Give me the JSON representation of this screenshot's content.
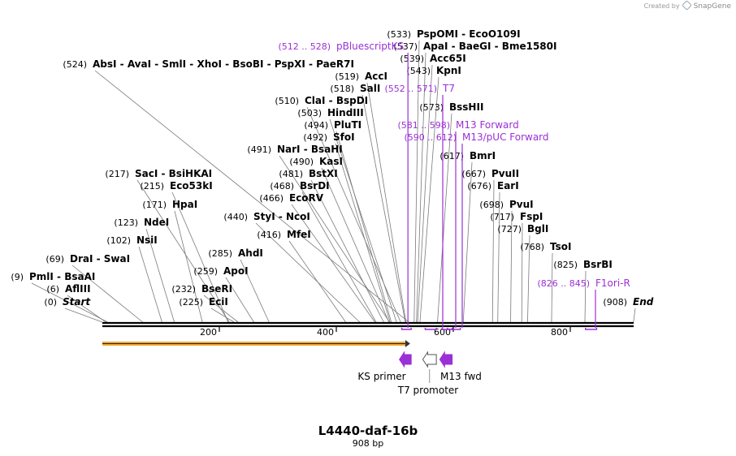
{
  "credit": {
    "prefix": "Created by",
    "brand": "SnapGene"
  },
  "title": "L4440-daf-16b",
  "subtitle": "908 bp",
  "total_bp": 908,
  "colors": {
    "feature_purple": "#9b30d6",
    "site_text": "#000000",
    "leader_line": "#7a7a7a",
    "backbone": "#000000",
    "orange_bar": "#f0a830",
    "arrow_fill": "#9b30d6"
  },
  "axis_ticks": [
    {
      "pos": 200,
      "label": "200"
    },
    {
      "pos": 400,
      "label": "400"
    },
    {
      "pos": 600,
      "label": "600"
    },
    {
      "pos": 800,
      "label": "800"
    }
  ],
  "sites": [
    {
      "pos_label": "(0)",
      "name": "Start",
      "pos": 0,
      "italic": true
    },
    {
      "pos_label": "(6)",
      "name": "AflIII",
      "pos": 6
    },
    {
      "pos_label": "(9)",
      "name": "PmlI  -  BsaAI",
      "pos": 9
    },
    {
      "pos_label": "(69)",
      "name": "DraI  -  SwaI",
      "pos": 69
    },
    {
      "pos_label": "(102)",
      "name": "NsiI",
      "pos": 102
    },
    {
      "pos_label": "(123)",
      "name": "NdeI",
      "pos": 123
    },
    {
      "pos_label": "(171)",
      "name": "HpaI",
      "pos": 171
    },
    {
      "pos_label": "(215)",
      "name": "Eco53kI",
      "pos": 215
    },
    {
      "pos_label": "(217)",
      "name": "SacI  -  BsiHKAI",
      "pos": 217
    },
    {
      "pos_label": "(225)",
      "name": "EciI",
      "pos": 225
    },
    {
      "pos_label": "(232)",
      "name": "BseRI",
      "pos": 232
    },
    {
      "pos_label": "(259)",
      "name": "ApoI",
      "pos": 259
    },
    {
      "pos_label": "(285)",
      "name": "AhdI",
      "pos": 285
    },
    {
      "pos_label": "(416)",
      "name": "MfeI",
      "pos": 416
    },
    {
      "pos_label": "(440)",
      "name": "StyI  -  NcoI",
      "pos": 440
    },
    {
      "pos_label": "(466)",
      "name": "EcoRV",
      "pos": 466
    },
    {
      "pos_label": "(468)",
      "name": "BsrDI",
      "pos": 468
    },
    {
      "pos_label": "(481)",
      "name": "BstXI",
      "pos": 481
    },
    {
      "pos_label": "(490)",
      "name": "KasI",
      "pos": 490
    },
    {
      "pos_label": "(491)",
      "name": "NarI  -  BsaHI",
      "pos": 491
    },
    {
      "pos_label": "(492)",
      "name": "SfoI",
      "pos": 492
    },
    {
      "pos_label": "(494)",
      "name": "PluTI",
      "pos": 494
    },
    {
      "pos_label": "(503)",
      "name": "HindIII",
      "pos": 503
    },
    {
      "pos_label": "(510)",
      "name": "ClaI  -  BspDI",
      "pos": 510
    },
    {
      "pos_label": "(518)",
      "name": "SalI",
      "pos": 518
    },
    {
      "pos_label": "(519)",
      "name": "AccI",
      "pos": 519
    },
    {
      "pos_label": "(524)",
      "name": "AbsI  -  AvaI  -  SmlI  -  XhoI  -  BsoBI  -  PspXI  -  PaeR7I",
      "pos": 524
    },
    {
      "pos_label": "(533)",
      "name": "PspOMI  -  EcoO109I",
      "pos": 533
    },
    {
      "pos_label": "(537)",
      "name": "ApaI  -  BaeGI  -  Bme1580I",
      "pos": 537
    },
    {
      "pos_label": "(539)",
      "name": "Acc65I",
      "pos": 539
    },
    {
      "pos_label": "(543)",
      "name": "KpnI",
      "pos": 543
    },
    {
      "pos_label": "(573)",
      "name": "BssHII",
      "pos": 573
    },
    {
      "pos_label": "(617)",
      "name": "BmrI",
      "pos": 617
    },
    {
      "pos_label": "(667)",
      "name": "PvuII",
      "pos": 667
    },
    {
      "pos_label": "(676)",
      "name": "EarI",
      "pos": 676
    },
    {
      "pos_label": "(698)",
      "name": "PvuI",
      "pos": 698
    },
    {
      "pos_label": "(717)",
      "name": "FspI",
      "pos": 717
    },
    {
      "pos_label": "(727)",
      "name": "BglI",
      "pos": 727
    },
    {
      "pos_label": "(768)",
      "name": "TsoI",
      "pos": 768
    },
    {
      "pos_label": "(825)",
      "name": "BsrBI",
      "pos": 825
    },
    {
      "pos_label": "(908)",
      "name": "End",
      "pos": 908,
      "italic": true
    }
  ],
  "primers": [
    {
      "name": "pBluescriptKS",
      "range": "(512 .. 528)",
      "start": 512,
      "end": 528
    },
    {
      "name": "T7",
      "range": "(552 .. 571)",
      "start": 552,
      "end": 571
    },
    {
      "name": "M13 Forward",
      "range": "(581 .. 598)",
      "start": 581,
      "end": 598
    },
    {
      "name": "M13/pUC Forward",
      "range": "(590 .. 612)",
      "start": 590,
      "end": 612
    },
    {
      "name": "F1ori-R",
      "range": "(826 .. 845)",
      "start": 826,
      "end": 845
    }
  ],
  "features": [
    {
      "name": "KS primer",
      "start": 512,
      "end": 528,
      "filled": true
    },
    {
      "name": "T7 promoter",
      "start": 552,
      "end": 571,
      "filled": false
    },
    {
      "name": "M13 fwd",
      "start": 581,
      "end": 598,
      "filled": true
    }
  ],
  "insert": {
    "start": 0,
    "end": 554
  }
}
